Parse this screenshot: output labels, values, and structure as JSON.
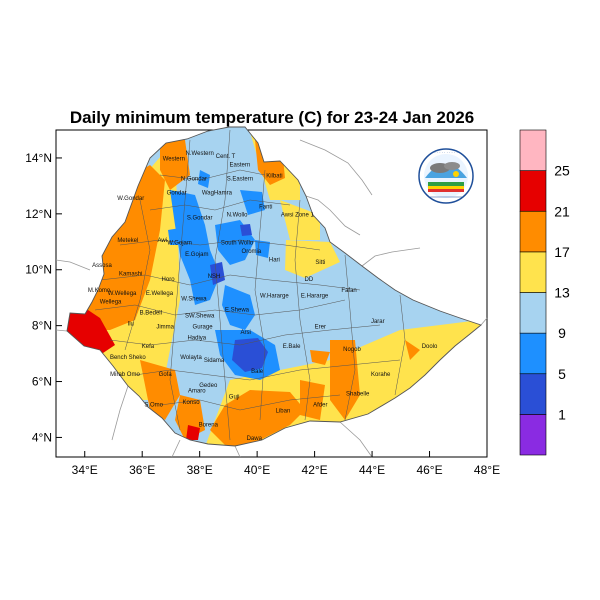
{
  "map": {
    "title": "Daily minimum temperature (C) for 23-24 Jan 2026",
    "lon_ticks": [
      "34°E",
      "36°E",
      "38°E",
      "40°E",
      "42°E",
      "44°E",
      "46°E",
      "48°E"
    ],
    "lat_ticks": [
      "4°N",
      "6°N",
      "8°N",
      "10°N",
      "12°N",
      "14°N"
    ],
    "lon_range": [
      33,
      48
    ],
    "lat_range": [
      3.3,
      15
    ]
  },
  "colorbar": {
    "labels": [
      "1",
      "5",
      "9",
      "13",
      "17",
      "21",
      "25"
    ],
    "colors": [
      "#8a2be2",
      "#2a4fd6",
      "#1e90ff",
      "#a7d3f0",
      "#ffe34d",
      "#ff8c00",
      "#e60000",
      "#ffb6c1"
    ]
  },
  "zones": [
    {
      "name": "Western",
      "lon": 37.1,
      "lat": 13.9
    },
    {
      "name": "N.Western",
      "lon": 38.0,
      "lat": 14.1
    },
    {
      "name": "Cent. T",
      "lon": 38.9,
      "lat": 14.0
    },
    {
      "name": "Eastern",
      "lon": 39.4,
      "lat": 13.7
    },
    {
      "name": "N.Gondar",
      "lon": 37.8,
      "lat": 13.2
    },
    {
      "name": "S.Eastern",
      "lon": 39.4,
      "lat": 13.2
    },
    {
      "name": "Kilbati",
      "lon": 40.6,
      "lat": 13.3
    },
    {
      "name": "Gondar",
      "lon": 37.2,
      "lat": 12.7
    },
    {
      "name": "WagHamra",
      "lon": 38.6,
      "lat": 12.7
    },
    {
      "name": "W.Gondar",
      "lon": 35.6,
      "lat": 12.5
    },
    {
      "name": "Fanti",
      "lon": 40.3,
      "lat": 12.2
    },
    {
      "name": "S.Gondar",
      "lon": 38.0,
      "lat": 11.8
    },
    {
      "name": "N.Wollo",
      "lon": 39.3,
      "lat": 11.9
    },
    {
      "name": "Awsi Zone 1",
      "lon": 41.4,
      "lat": 11.9
    },
    {
      "name": "Metekel",
      "lon": 35.5,
      "lat": 11.0
    },
    {
      "name": "Awi",
      "lon": 36.7,
      "lat": 11.0
    },
    {
      "name": "W.Gojam",
      "lon": 37.3,
      "lat": 10.9
    },
    {
      "name": "South Wollo",
      "lon": 39.3,
      "lat": 10.9
    },
    {
      "name": "E.Gojam",
      "lon": 37.9,
      "lat": 10.5
    },
    {
      "name": "Oromia",
      "lon": 39.8,
      "lat": 10.6
    },
    {
      "name": "Hari",
      "lon": 40.6,
      "lat": 10.3
    },
    {
      "name": "Sitti",
      "lon": 42.2,
      "lat": 10.2
    },
    {
      "name": "Assosa",
      "lon": 34.6,
      "lat": 10.1
    },
    {
      "name": "Kamashi",
      "lon": 35.6,
      "lat": 9.8
    },
    {
      "name": "Horo",
      "lon": 36.9,
      "lat": 9.6
    },
    {
      "name": "NSH",
      "lon": 38.5,
      "lat": 9.7
    },
    {
      "name": "DD",
      "lon": 41.8,
      "lat": 9.6
    },
    {
      "name": "Fafan",
      "lon": 43.2,
      "lat": 9.2
    },
    {
      "name": "M.Komo",
      "lon": 34.5,
      "lat": 9.2
    },
    {
      "name": "W.Wellega",
      "lon": 35.3,
      "lat": 9.1
    },
    {
      "name": "E.Wellega",
      "lon": 36.6,
      "lat": 9.1
    },
    {
      "name": "W.Shewa",
      "lon": 37.8,
      "lat": 8.9
    },
    {
      "name": "E.Shewa",
      "lon": 39.3,
      "lat": 8.5
    },
    {
      "name": "W.Hararge",
      "lon": 40.6,
      "lat": 9.0
    },
    {
      "name": "E.Hararge",
      "lon": 42.0,
      "lat": 9.0
    },
    {
      "name": "Wellega",
      "lon": 34.9,
      "lat": 8.8
    },
    {
      "name": "B.Bedell",
      "lon": 36.3,
      "lat": 8.4
    },
    {
      "name": "SW.Shewa",
      "lon": 38.0,
      "lat": 8.3
    },
    {
      "name": "Jarar",
      "lon": 44.2,
      "lat": 8.1
    },
    {
      "name": "Ilu",
      "lon": 35.6,
      "lat": 8.0
    },
    {
      "name": "Jimma",
      "lon": 36.8,
      "lat": 7.9
    },
    {
      "name": "Erer",
      "lon": 42.2,
      "lat": 7.9
    },
    {
      "name": "Gurage",
      "lon": 38.1,
      "lat": 7.9
    },
    {
      "name": "Arsi",
      "lon": 39.6,
      "lat": 7.7
    },
    {
      "name": "Kefa",
      "lon": 36.2,
      "lat": 7.2
    },
    {
      "name": "Hadiya",
      "lon": 37.9,
      "lat": 7.5
    },
    {
      "name": "E.Bale",
      "lon": 41.2,
      "lat": 7.2
    },
    {
      "name": "Nogob",
      "lon": 43.3,
      "lat": 7.1
    },
    {
      "name": "Doolo",
      "lon": 46.0,
      "lat": 7.2
    },
    {
      "name": "Wolayta",
      "lon": 37.7,
      "lat": 6.8
    },
    {
      "name": "Sidama",
      "lon": 38.5,
      "lat": 6.7
    },
    {
      "name": "Bale",
      "lon": 40.0,
      "lat": 6.3
    },
    {
      "name": "Korahe",
      "lon": 44.3,
      "lat": 6.2
    },
    {
      "name": "Bench Sheko",
      "lon": 35.5,
      "lat": 6.8
    },
    {
      "name": "Mirab Omo",
      "lon": 35.4,
      "lat": 6.2
    },
    {
      "name": "Gofa",
      "lon": 36.8,
      "lat": 6.2
    },
    {
      "name": "Gedeo",
      "lon": 38.3,
      "lat": 5.8
    },
    {
      "name": "Amaro",
      "lon": 37.9,
      "lat": 5.6
    },
    {
      "name": "Shabelle",
      "lon": 43.5,
      "lat": 5.5
    },
    {
      "name": "Guji",
      "lon": 39.2,
      "lat": 5.4
    },
    {
      "name": "Liban",
      "lon": 40.9,
      "lat": 4.9
    },
    {
      "name": "Afder",
      "lon": 42.2,
      "lat": 5.1
    },
    {
      "name": "S.Omo",
      "lon": 36.4,
      "lat": 5.1
    },
    {
      "name": "Konso",
      "lon": 37.7,
      "lat": 5.2
    },
    {
      "name": "Borena",
      "lon": 38.3,
      "lat": 4.4
    },
    {
      "name": "Dawa",
      "lon": 39.9,
      "lat": 3.9
    }
  ]
}
